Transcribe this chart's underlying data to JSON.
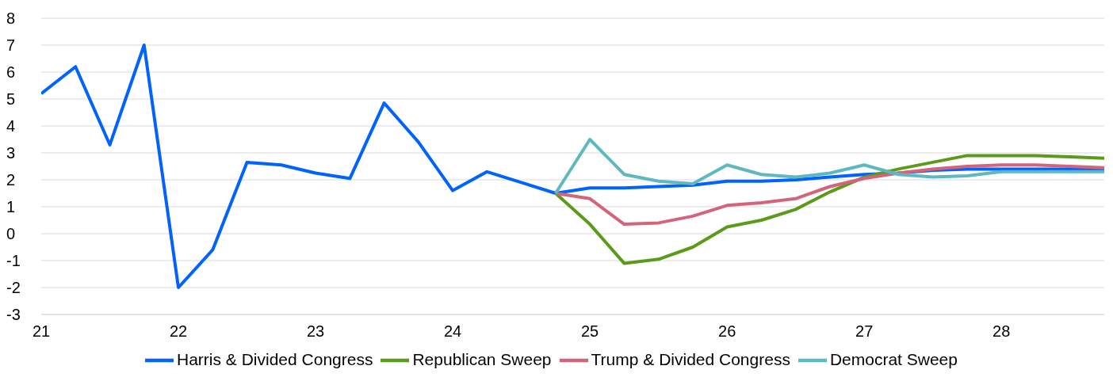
{
  "chart_data": {
    "type": "line",
    "x": [
      21,
      21.25,
      21.5,
      21.75,
      22,
      22.25,
      22.5,
      22.75,
      23,
      23.25,
      23.5,
      23.75,
      24,
      24.25,
      24.5,
      24.75,
      25,
      25.25,
      25.5,
      25.75,
      26,
      26.25,
      26.5,
      26.75,
      27,
      27.25,
      27.5,
      27.75,
      28,
      28.25,
      28.5,
      28.75
    ],
    "series": [
      {
        "name": "Harris & Divided Congress",
        "color": "#0062ff",
        "values": [
          5.2,
          6.2,
          3.3,
          7.0,
          -2.0,
          -0.6,
          2.65,
          2.55,
          2.25,
          2.05,
          4.85,
          3.4,
          1.6,
          2.3,
          1.9,
          1.5,
          1.7,
          1.7,
          1.75,
          1.8,
          1.95,
          1.95,
          2.0,
          2.1,
          2.2,
          2.25,
          2.35,
          2.4,
          2.4,
          2.4,
          2.4,
          2.4
        ]
      },
      {
        "name": "Republican Sweep",
        "color": "#5b9a1b",
        "values": [
          null,
          null,
          null,
          null,
          null,
          null,
          null,
          null,
          null,
          null,
          null,
          null,
          null,
          null,
          null,
          1.5,
          0.35,
          -1.1,
          -0.95,
          -0.5,
          0.25,
          0.5,
          0.9,
          1.55,
          2.1,
          2.4,
          2.65,
          2.9,
          2.9,
          2.9,
          2.85,
          2.8
        ]
      },
      {
        "name": "Trump & Divided Congress",
        "color": "#d4647a",
        "values": [
          null,
          null,
          null,
          null,
          null,
          null,
          null,
          null,
          null,
          null,
          null,
          null,
          null,
          null,
          null,
          1.5,
          1.3,
          0.35,
          0.4,
          0.65,
          1.05,
          1.15,
          1.3,
          1.75,
          2.05,
          2.25,
          2.4,
          2.5,
          2.55,
          2.55,
          2.5,
          2.45
        ]
      },
      {
        "name": "Democrat Sweep",
        "color": "#5db8c0",
        "values": [
          null,
          null,
          null,
          null,
          null,
          null,
          null,
          null,
          null,
          null,
          null,
          null,
          null,
          null,
          null,
          1.5,
          3.5,
          2.2,
          1.95,
          1.85,
          2.55,
          2.2,
          2.1,
          2.25,
          2.55,
          2.2,
          2.1,
          2.15,
          2.3,
          2.3,
          2.3,
          2.3
        ]
      }
    ],
    "xlim": [
      21,
      28.75
    ],
    "xticks": [
      21,
      22,
      23,
      24,
      25,
      26,
      27,
      28
    ],
    "ylim": [
      -3,
      8
    ],
    "yticks": [
      -3,
      -2,
      -1,
      0,
      1,
      2,
      3,
      4,
      5,
      6,
      7,
      8
    ],
    "grid": "y",
    "legend": "bottom"
  }
}
